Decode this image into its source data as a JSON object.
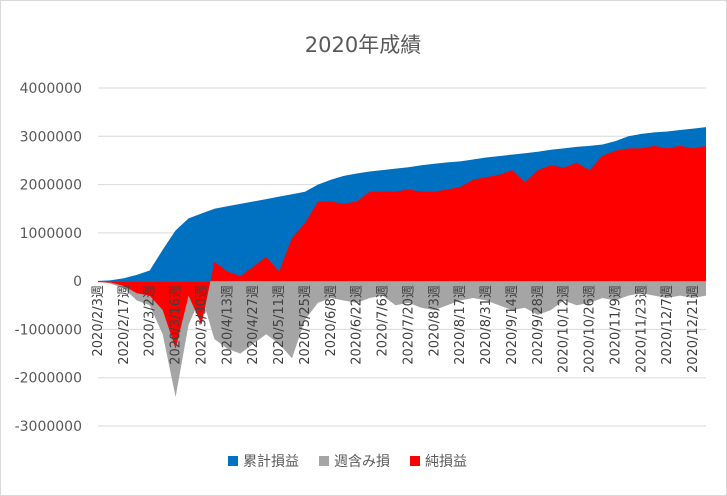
{
  "chart_data": {
    "type": "area",
    "title": "2020年成績",
    "ylim": [
      -3000000,
      4000000
    ],
    "yticks": [
      "4000000",
      "3000000",
      "2000000",
      "1000000",
      "0",
      "-1000000",
      "-2000000",
      "-3000000"
    ],
    "x_tick_labels": [
      "2020/2/3週",
      "2020/2/17週",
      "2020/3/2週",
      "2020/3/16週",
      "2020/3/30週",
      "2020/4/13週",
      "2020/4/27週",
      "2020/5/11週",
      "2020/5/25週",
      "2020/6/8週",
      "2020/6/22週",
      "2020/7/6週",
      "2020/7/20週",
      "2020/8/3週",
      "2020/8/17週",
      "2020/8/31週",
      "2020/9/14週",
      "2020/9/28週",
      "2020/10/12週",
      "2020/10/26週",
      "2020/11/9週",
      "2020/11/23週",
      "2020/12/7週",
      "2020/12/21週"
    ],
    "x_points": 48,
    "series": [
      {
        "name": "累計損益",
        "color": "#0070C0",
        "values": [
          0,
          20000,
          60000,
          130000,
          220000,
          650000,
          1050000,
          1300000,
          1400000,
          1500000,
          1550000,
          1600000,
          1650000,
          1700000,
          1750000,
          1800000,
          1850000,
          2000000,
          2100000,
          2180000,
          2230000,
          2270000,
          2300000,
          2330000,
          2360000,
          2400000,
          2430000,
          2460000,
          2480000,
          2520000,
          2560000,
          2590000,
          2620000,
          2650000,
          2680000,
          2720000,
          2750000,
          2780000,
          2800000,
          2830000,
          2900000,
          3000000,
          3050000,
          3080000,
          3100000,
          3130000,
          3160000,
          3190000
        ]
      },
      {
        "name": "週含み損",
        "color": "#A5A5A5",
        "values": [
          0,
          -50000,
          -150000,
          -400000,
          -500000,
          -1100000,
          -2400000,
          -900000,
          -300000,
          -1200000,
          -1400000,
          -1500000,
          -1300000,
          -1100000,
          -1300000,
          -1600000,
          -800000,
          -450000,
          -350000,
          -400000,
          -450000,
          -350000,
          -300000,
          -500000,
          -450000,
          -550000,
          -600000,
          -500000,
          -400000,
          -350000,
          -400000,
          -500000,
          -600000,
          -550000,
          -700000,
          -600000,
          -400000,
          -500000,
          -450000,
          -350000,
          -400000,
          -300000,
          -250000,
          -300000,
          -350000,
          -300000,
          -350000,
          -300000
        ]
      },
      {
        "name": "純損益",
        "color": "#FF0000",
        "values": [
          -20000,
          -30000,
          -100000,
          -250000,
          -300000,
          -600000,
          -1400000,
          -300000,
          -900000,
          400000,
          200000,
          100000,
          300000,
          500000,
          200000,
          900000,
          1200000,
          1650000,
          1650000,
          1600000,
          1650000,
          1850000,
          1850000,
          1850000,
          1900000,
          1850000,
          1850000,
          1900000,
          1950000,
          2100000,
          2150000,
          2200000,
          2300000,
          2050000,
          2300000,
          2400000,
          2350000,
          2450000,
          2300000,
          2600000,
          2700000,
          2750000,
          2750000,
          2800000,
          2750000,
          2800000,
          2750000,
          2800000
        ]
      }
    ],
    "legend_position": "bottom",
    "grid": true
  }
}
